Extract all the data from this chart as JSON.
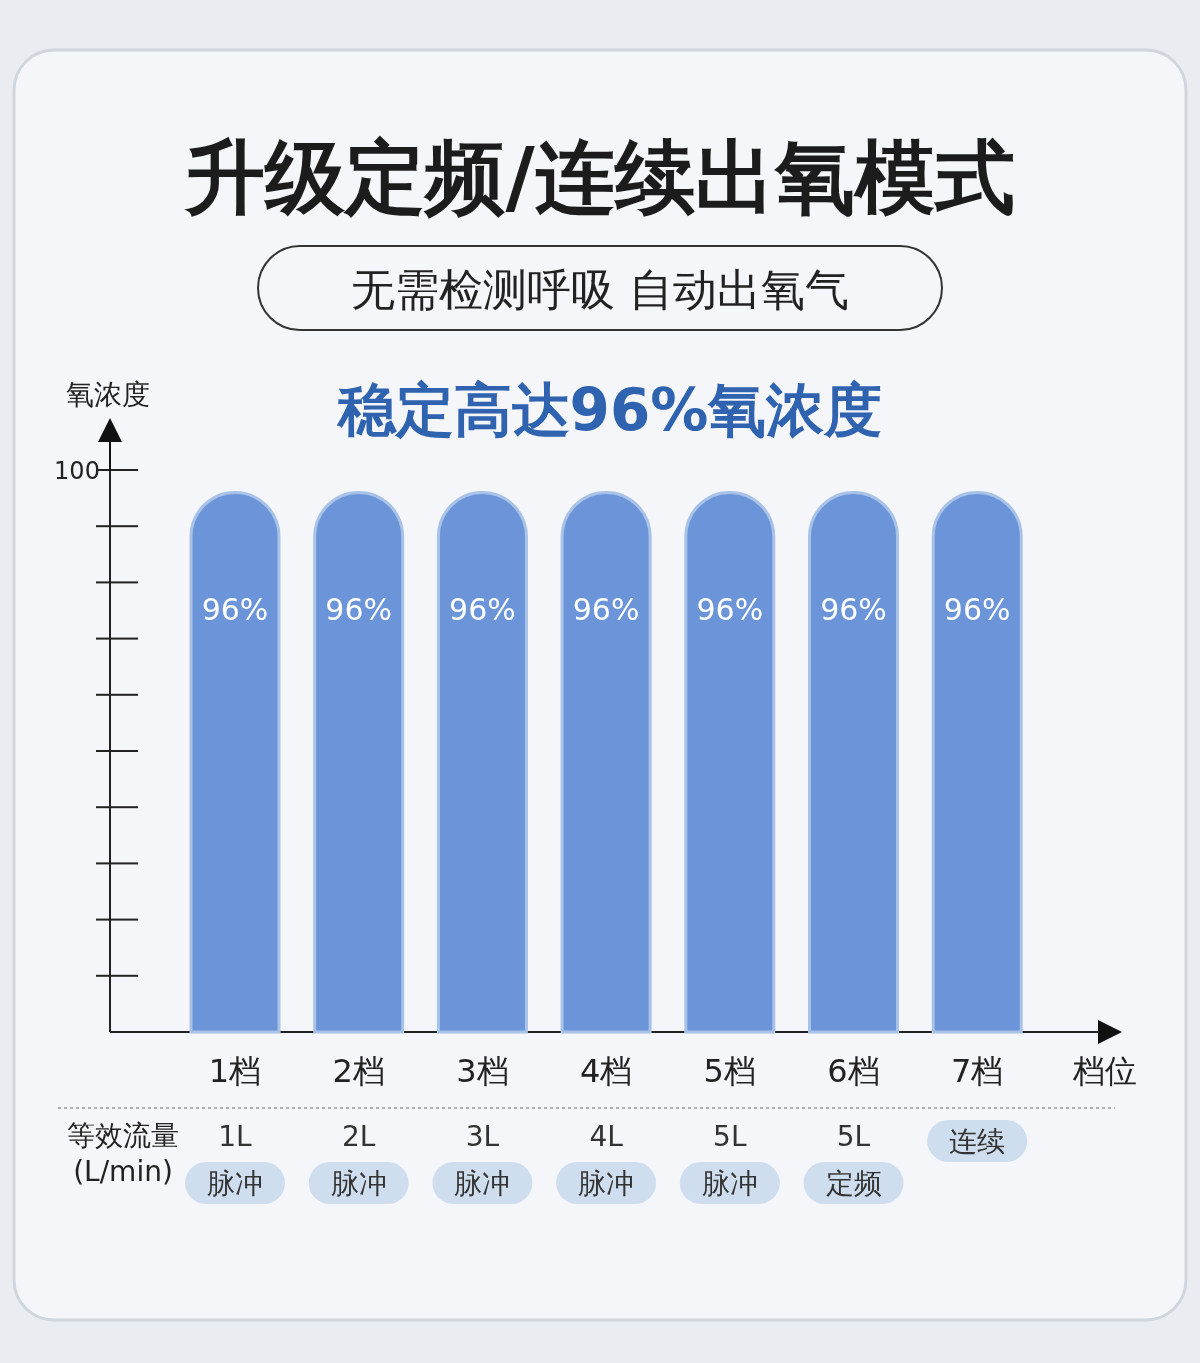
{
  "chart_data": {
    "type": "bar",
    "title": "升级定频/连续出氧模式",
    "subtitle": "无需检测呼吸 自动出氧气",
    "ylabel": "氧浓度",
    "xlabel": "档位",
    "categories": [
      "1档",
      "2档",
      "3档",
      "4档",
      "5档",
      "6档",
      "7档"
    ],
    "values": [
      96,
      96,
      96,
      96,
      96,
      96,
      96
    ],
    "value_labels": [
      "96%",
      "96%",
      "96%",
      "96%",
      "96%",
      "96%",
      "96%"
    ],
    "color": "#6b95d8",
    "ylim": [
      0,
      100
    ],
    "yticks": [
      {
        "value": 10,
        "label": null
      },
      {
        "value": 20,
        "label": null
      },
      {
        "value": 30,
        "label": null
      },
      {
        "value": 40,
        "label": null
      },
      {
        "value": 50,
        "label": null
      },
      {
        "value": 60,
        "label": null
      },
      {
        "value": 70,
        "label": null
      },
      {
        "value": 80,
        "label": null
      },
      {
        "value": 90,
        "label": null
      },
      100
    ],
    "annotations": [
      "稳定高达96%氧浓度",
      "等效流量\n(L/min)",
      "1L\n脉冲",
      "2L\n脉冲",
      "3L\n脉冲",
      "4L\n脉冲",
      "5L\n脉冲",
      "5L\n定频",
      "连续"
    ]
  }
}
